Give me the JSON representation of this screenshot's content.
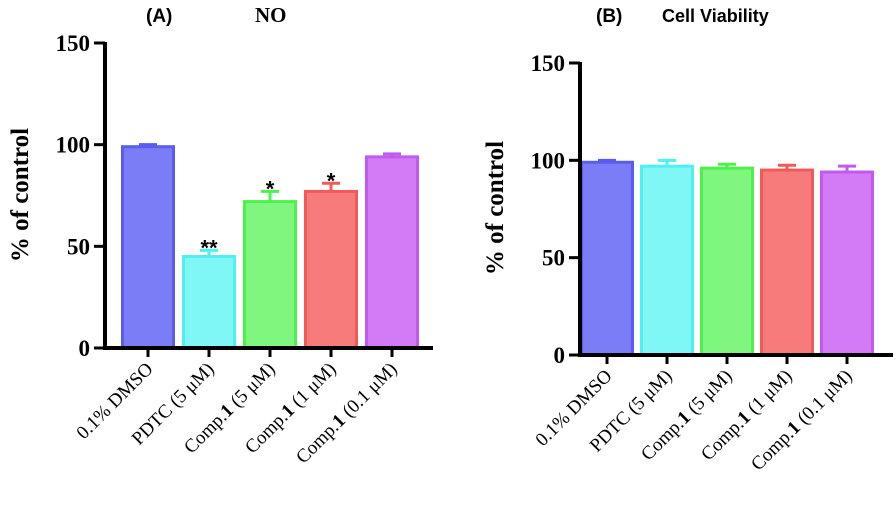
{
  "chart_data": [
    {
      "type": "bar",
      "panel_label": "(A)",
      "title": "NO",
      "ylabel": "% of control",
      "ylim": [
        0,
        150
      ],
      "yticks": [
        "0",
        "50",
        "100",
        "150"
      ],
      "categories": [
        {
          "pre": "0.1% DMSO",
          "bold": "",
          "post": ""
        },
        {
          "pre": "PDTC (5 μM)",
          "bold": "",
          "post": ""
        },
        {
          "pre": "Comp.",
          "bold": "1",
          "post": " (5 μM)"
        },
        {
          "pre": "Comp.",
          "bold": "1",
          "post": " (1 μM)"
        },
        {
          "pre": "Comp.",
          "bold": "1",
          "post": " (0.1 μM)"
        }
      ],
      "values": [
        99,
        45,
        72,
        77,
        94
      ],
      "errors": [
        1,
        3,
        5,
        4,
        1.5
      ],
      "significance": [
        "",
        "**",
        "*",
        "*",
        ""
      ],
      "colors": {
        "fill": [
          "#7b7df7",
          "#7ff7f7",
          "#7ff77f",
          "#f77b7b",
          "#d37bf7"
        ],
        "stroke": [
          "#5a5cf0",
          "#4ef0f0",
          "#4ef04e",
          "#f05a5a",
          "#c25af0"
        ]
      }
    },
    {
      "type": "bar",
      "panel_label": "(B)",
      "title": "Cell Viability",
      "ylabel": "% of control",
      "ylim": [
        0,
        150
      ],
      "yticks": [
        "0",
        "50",
        "100",
        "150"
      ],
      "categories": [
        {
          "pre": "0.1% DMSO",
          "bold": "",
          "post": ""
        },
        {
          "pre": "PDTC (5 μM)",
          "bold": "",
          "post": ""
        },
        {
          "pre": "Comp.",
          "bold": "1",
          "post": " (5 μM)"
        },
        {
          "pre": "Comp.",
          "bold": "1",
          "post": " (1 μM)"
        },
        {
          "pre": "Comp.",
          "bold": "1",
          "post": " (0.1 μM)"
        }
      ],
      "values": [
        99,
        97,
        96,
        95,
        94
      ],
      "errors": [
        1,
        3,
        2,
        2.5,
        3
      ],
      "significance": [
        "",
        "",
        "",
        "",
        ""
      ],
      "colors": {
        "fill": [
          "#7b7df7",
          "#7ff7f7",
          "#7ff77f",
          "#f77b7b",
          "#d37bf7"
        ],
        "stroke": [
          "#5a5cf0",
          "#4ef0f0",
          "#4ef04e",
          "#f05a5a",
          "#c25af0"
        ]
      }
    }
  ]
}
